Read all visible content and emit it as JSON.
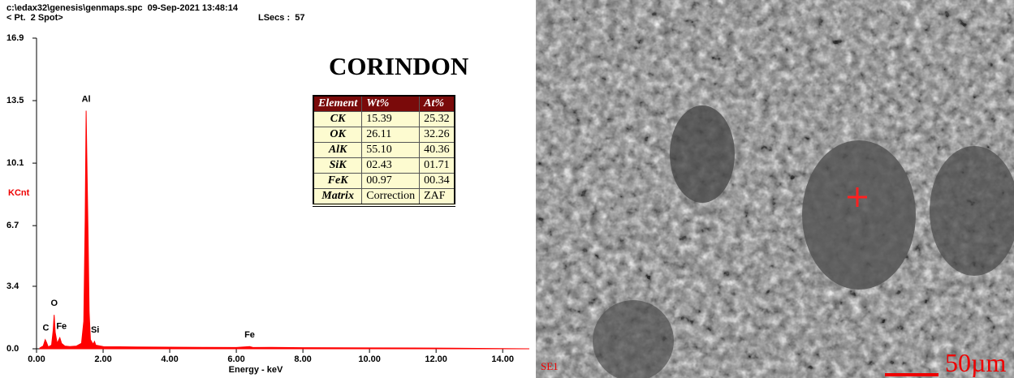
{
  "chart_data": {
    "type": "spectrum",
    "header": {
      "file": "c:\\edax32\\genesis\\genmaps.spc  09-Sep-2021 13:48:14",
      "point": "< Pt.  2 Spot>",
      "live_secs": "LSecs :  57"
    },
    "xlabel": "Energy - keV",
    "ylabel": "KCnt",
    "color": "#ff0000",
    "xlim": [
      0,
      14.8
    ],
    "ylim": [
      0,
      16.9
    ],
    "xticks": [
      {
        "value": 0,
        "label": "0.00"
      },
      {
        "value": 2,
        "label": "2.00"
      },
      {
        "value": 4,
        "label": "4.00"
      },
      {
        "value": 6,
        "label": "6.00"
      },
      {
        "value": 8,
        "label": "8.00"
      },
      {
        "value": 10,
        "label": "10.00"
      },
      {
        "value": 12,
        "label": "12.00"
      },
      {
        "value": 14,
        "label": "14.00"
      }
    ],
    "yticks": [
      {
        "value": 0,
        "label": "0.0"
      },
      3.4,
      6.7,
      10.1,
      13.5,
      16.9
    ],
    "x": [
      0.1,
      0.2,
      0.26,
      0.3,
      0.35,
      0.45,
      0.5,
      0.53,
      0.56,
      0.62,
      0.7,
      0.75,
      0.85,
      1.0,
      1.2,
      1.35,
      1.42,
      1.46,
      1.49,
      1.52,
      1.55,
      1.58,
      1.62,
      1.7,
      1.74,
      1.78,
      2.0,
      3.0,
      4.0,
      5.0,
      6.0,
      6.4,
      6.5,
      7.05,
      8.0,
      10.0,
      12.0,
      12.5,
      14.8
    ],
    "values": [
      0.05,
      0.15,
      0.5,
      0.35,
      0.1,
      0.2,
      1.0,
      1.85,
      0.9,
      0.3,
      0.6,
      0.3,
      0.15,
      0.12,
      0.15,
      0.3,
      1.5,
      7.0,
      12.95,
      9.5,
      5.9,
      2.0,
      0.5,
      0.25,
      0.4,
      0.2,
      0.12,
      0.1,
      0.09,
      0.08,
      0.07,
      0.12,
      0.07,
      0.08,
      0.06,
      0.05,
      0.04,
      0.03,
      0
    ],
    "annotations": [
      {
        "text": "C",
        "x": 0.28
      },
      {
        "text": "O",
        "x": 0.53
      },
      {
        "text": "Fe",
        "x": 0.75
      },
      {
        "text": "Al",
        "x": 1.49
      },
      {
        "text": "Si",
        "x": 1.76
      },
      {
        "text": "Fe",
        "x": 6.4
      }
    ],
    "results_table": {
      "title": "CORINDON",
      "columns": [
        "Element",
        "Wt%",
        "At%"
      ],
      "rows": [
        [
          "CK",
          "15.39",
          "25.32"
        ],
        [
          "OK",
          "26.11",
          "32.26"
        ],
        [
          "AlK",
          "55.10",
          "40.36"
        ],
        [
          "SiK",
          "02.43",
          "01.71"
        ],
        [
          "FeK",
          "00.97",
          "00.34"
        ],
        [
          "Matrix",
          "Correction",
          "ZAF"
        ]
      ]
    }
  },
  "image": {
    "detector": "SE1",
    "scale_bar": "50µm"
  }
}
